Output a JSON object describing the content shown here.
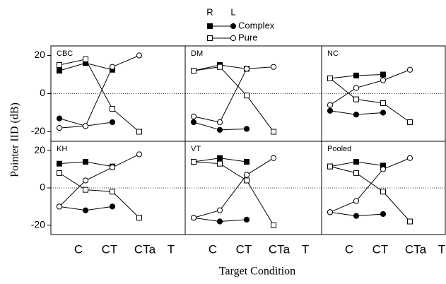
{
  "chart_data": {
    "type": "line",
    "ylabel": "Pointer IID (dB)",
    "xlabel": "Target Condition",
    "categories": [
      "C",
      "CT",
      "CTa",
      "T"
    ],
    "ylim": [
      -25,
      25
    ],
    "yticks": [
      -20,
      0,
      20
    ],
    "panels": [
      {
        "title": "CBC",
        "series": [
          {
            "name": "Complex",
            "side": "R",
            "marker": "square",
            "filled": true,
            "values": [
              12,
              16,
              12.5,
              null
            ]
          },
          {
            "name": "Complex",
            "side": "L",
            "marker": "circle",
            "filled": true,
            "values": [
              -13,
              -17,
              -15,
              null
            ]
          },
          {
            "name": "Pure",
            "side": "R",
            "marker": "square",
            "filled": false,
            "values": [
              15,
              18,
              -8,
              -20
            ]
          },
          {
            "name": "Pure",
            "side": "L",
            "marker": "circle",
            "filled": false,
            "values": [
              -18,
              -17,
              14,
              20
            ]
          }
        ]
      },
      {
        "title": "DM",
        "series": [
          {
            "name": "Complex",
            "side": "R",
            "marker": "square",
            "filled": true,
            "values": [
              12,
              15,
              13,
              null
            ]
          },
          {
            "name": "Complex",
            "side": "L",
            "marker": "circle",
            "filled": true,
            "values": [
              -15,
              -19,
              -18.5,
              null
            ]
          },
          {
            "name": "Pure",
            "side": "R",
            "marker": "square",
            "filled": false,
            "values": [
              12,
              14,
              -1,
              -20
            ]
          },
          {
            "name": "Pure",
            "side": "L",
            "marker": "circle",
            "filled": false,
            "values": [
              -12,
              -15,
              13,
              14
            ]
          }
        ]
      },
      {
        "title": "NC",
        "series": [
          {
            "name": "Complex",
            "side": "R",
            "marker": "square",
            "filled": true,
            "values": [
              8,
              9.5,
              10,
              null
            ]
          },
          {
            "name": "Complex",
            "side": "L",
            "marker": "circle",
            "filled": true,
            "values": [
              -9,
              -11,
              -10,
              null
            ]
          },
          {
            "name": "Pure",
            "side": "R",
            "marker": "square",
            "filled": false,
            "values": [
              8,
              -3,
              -5,
              -15
            ]
          },
          {
            "name": "Pure",
            "side": "L",
            "marker": "circle",
            "filled": false,
            "values": [
              -6,
              3,
              7,
              12.5
            ]
          }
        ]
      },
      {
        "title": "KH",
        "series": [
          {
            "name": "Complex",
            "side": "R",
            "marker": "square",
            "filled": true,
            "values": [
              13,
              14,
              11.5,
              null
            ]
          },
          {
            "name": "Complex",
            "side": "L",
            "marker": "circle",
            "filled": true,
            "values": [
              -10,
              -12,
              -10,
              null
            ]
          },
          {
            "name": "Pure",
            "side": "R",
            "marker": "square",
            "filled": false,
            "values": [
              8,
              -1,
              -2,
              -16
            ]
          },
          {
            "name": "Pure",
            "side": "L",
            "marker": "circle",
            "filled": false,
            "values": [
              -10,
              4,
              11,
              18
            ]
          }
        ]
      },
      {
        "title": "VT",
        "series": [
          {
            "name": "Complex",
            "side": "R",
            "marker": "square",
            "filled": true,
            "values": [
              14,
              16,
              14,
              null
            ]
          },
          {
            "name": "Complex",
            "side": "L",
            "marker": "circle",
            "filled": true,
            "values": [
              -16,
              -18,
              -17,
              null
            ]
          },
          {
            "name": "Pure",
            "side": "R",
            "marker": "square",
            "filled": false,
            "values": [
              14,
              13,
              4,
              -20
            ]
          },
          {
            "name": "Pure",
            "side": "L",
            "marker": "circle",
            "filled": false,
            "values": [
              -16,
              -12,
              7,
              16
            ]
          }
        ]
      },
      {
        "title": "Pooled",
        "series": [
          {
            "name": "Complex",
            "side": "R",
            "marker": "square",
            "filled": true,
            "values": [
              11.5,
              14,
              12,
              null
            ]
          },
          {
            "name": "Complex",
            "side": "L",
            "marker": "circle",
            "filled": true,
            "values": [
              -13,
              -15,
              -14,
              null
            ]
          },
          {
            "name": "Pure",
            "side": "R",
            "marker": "square",
            "filled": false,
            "values": [
              11.5,
              8,
              -2,
              -18
            ]
          },
          {
            "name": "Pure",
            "side": "L",
            "marker": "circle",
            "filled": false,
            "values": [
              -13,
              -7,
              10,
              16
            ]
          }
        ]
      }
    ]
  }
}
